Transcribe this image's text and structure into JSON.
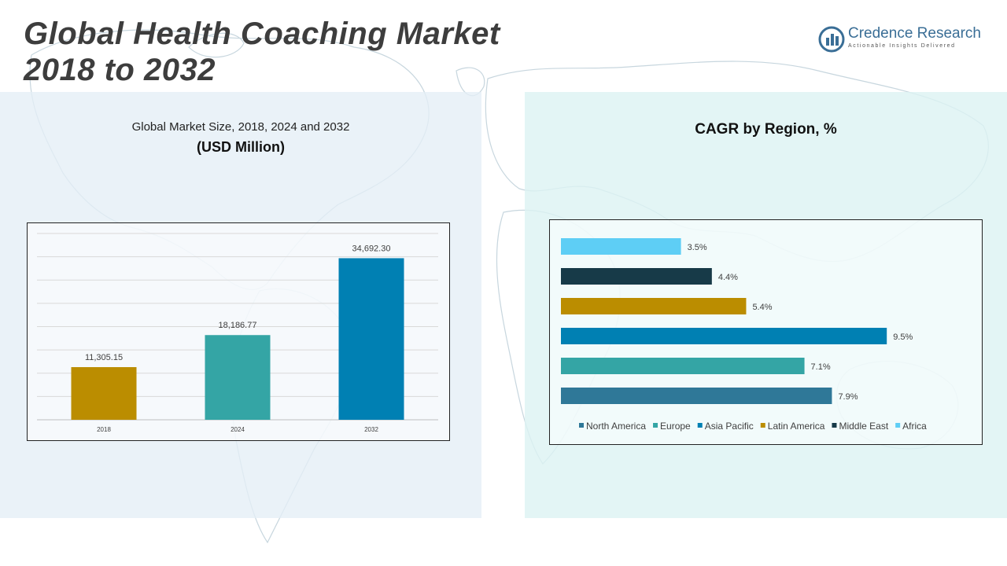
{
  "header": {
    "title_line1": "Global Health Coaching Market",
    "title_line2": "2018 to 2032"
  },
  "logo": {
    "name": "Credence Research",
    "tagline": "Actionable Insights Delivered",
    "icon": "bar-chart-circle-icon"
  },
  "colors": {
    "title": "#3d3d3d",
    "brand": "#3a6e96",
    "north_america": "#2f7898",
    "europe": "#34a5a5",
    "asia_pacific": "#0080b3",
    "latin_america": "#bb8d00",
    "middle_east": "#173a48",
    "africa": "#5ecef5"
  },
  "left_panel": {
    "subtitle": "Global Market Size, 2018, 2024 and 2032",
    "unit": "(USD Million)"
  },
  "right_panel": {
    "title": "CAGR by Region, %"
  },
  "chart_data": [
    {
      "type": "bar",
      "title": "Global Market Size, 2018, 2024 and 2032",
      "ylabel": "(USD Million)",
      "categories": [
        "2018",
        "2024",
        "2032"
      ],
      "values": [
        11305.15,
        18186.77,
        34692.3
      ],
      "labels": [
        "11,305.15",
        "18,186.77",
        "34,692.30"
      ],
      "colors": [
        "#bb8d00",
        "#34a5a5",
        "#0080b3"
      ],
      "ylim": [
        0,
        40000
      ],
      "grid": true
    },
    {
      "type": "bar",
      "orientation": "horizontal",
      "title": "CAGR by Region, %",
      "categories": [
        "Africa",
        "Middle East",
        "Latin America",
        "Asia Pacific",
        "Europe",
        "North America"
      ],
      "values": [
        3.5,
        4.4,
        5.4,
        9.5,
        7.1,
        7.9
      ],
      "labels": [
        "3.5%",
        "4.4%",
        "5.4%",
        "9.5%",
        "7.1%",
        "7.9%"
      ],
      "colors": [
        "#5ecef5",
        "#173a48",
        "#bb8d00",
        "#0080b3",
        "#34a5a5",
        "#2f7898"
      ],
      "xlim": [
        0,
        10
      ],
      "legend": [
        "North America",
        "Europe",
        "Asia Pacific",
        "Latin America",
        "Middle East",
        "Africa"
      ],
      "legend_colors": [
        "#2f7898",
        "#34a5a5",
        "#0080b3",
        "#bb8d00",
        "#173a48",
        "#5ecef5"
      ],
      "legend_position": "bottom"
    }
  ]
}
